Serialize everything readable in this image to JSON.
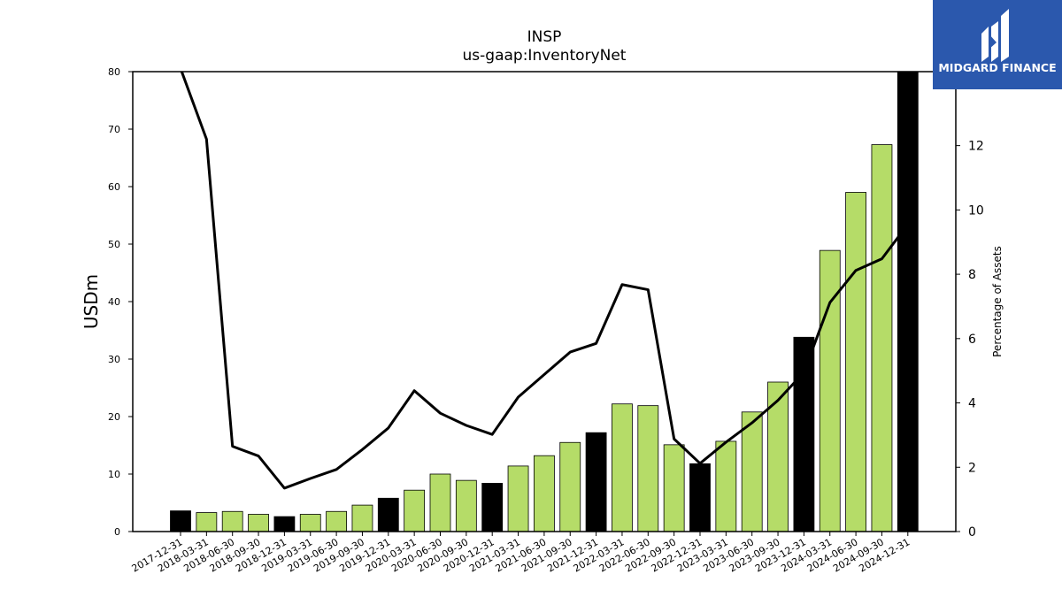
{
  "chart_data": {
    "type": "bar",
    "title": "INSP",
    "subtitle": "us-gaap:InventoryNet",
    "ylabel": "USDm",
    "y2label": "Percentage of Assets",
    "ylim": [
      0,
      80
    ],
    "y2lim": [
      0,
      14.3
    ],
    "yticks": [
      0,
      10,
      20,
      30,
      40,
      50,
      60,
      70,
      80
    ],
    "y2ticks": [
      0,
      2,
      4,
      6,
      8,
      10,
      12
    ],
    "categories": [
      "2017-12-31",
      "2018-03-31",
      "2018-06-30",
      "2018-09-30",
      "2018-12-31",
      "2019-03-31",
      "2019-06-30",
      "2019-09-30",
      "2019-12-31",
      "2020-03-31",
      "2020-06-30",
      "2020-09-30",
      "2020-12-31",
      "2021-03-31",
      "2021-06-30",
      "2021-09-30",
      "2021-12-31",
      "2022-03-31",
      "2022-06-30",
      "2022-09-30",
      "2022-12-31",
      "2023-03-31",
      "2023-06-30",
      "2023-09-30",
      "2023-12-31",
      "2024-03-31",
      "2024-06-30",
      "2024-09-30",
      "2024-12-31"
    ],
    "series": [
      {
        "type": "bar",
        "axis": "left",
        "values": [
          3.6,
          3.3,
          3.5,
          3.0,
          2.6,
          3.0,
          3.5,
          4.6,
          5.8,
          7.2,
          10.0,
          8.9,
          8.4,
          11.4,
          13.2,
          15.5,
          17.2,
          22.2,
          21.9,
          15.1,
          11.8,
          15.7,
          20.8,
          26.0,
          33.8,
          48.9,
          59.0,
          67.3,
          80.0
        ]
      },
      {
        "type": "line",
        "axis": "right",
        "values": [
          14.4,
          12.2,
          2.65,
          2.35,
          1.35,
          1.65,
          1.93,
          2.55,
          3.22,
          4.38,
          3.68,
          3.3,
          3.02,
          4.18,
          4.88,
          5.58,
          5.85,
          7.68,
          7.52,
          2.88,
          2.12,
          2.78,
          3.38,
          4.08,
          4.95,
          7.12,
          8.12,
          8.48,
          9.55
        ]
      }
    ],
    "highlight_color": "#000000",
    "bar_color": "#b5dc68",
    "line_color": "#000000",
    "grid": false
  },
  "logo": {
    "text": "MIDGARD FINANCE",
    "background": "#2b58ad"
  }
}
